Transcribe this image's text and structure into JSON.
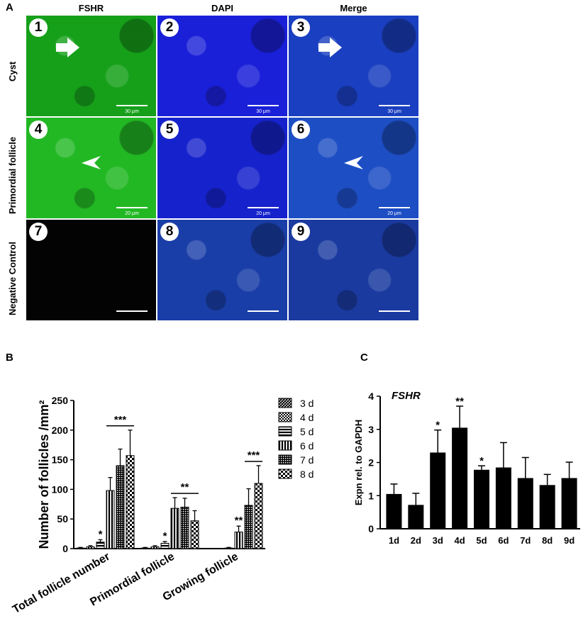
{
  "panel_a": {
    "letter": "A",
    "columns": [
      "FSHR",
      "DAPI",
      "Merge"
    ],
    "rows": [
      "Cyst",
      "Primordial follicle",
      "Negative Control"
    ],
    "tiles": [
      {
        "num": "1",
        "scale": "30 μm",
        "color": "#16a01a",
        "arrow": "arrow"
      },
      {
        "num": "2",
        "scale": "30 μm",
        "color": "#1a20d8",
        "arrow": ""
      },
      {
        "num": "3",
        "scale": "30 μm",
        "color": "#1a3fc0",
        "arrow": "arrow"
      },
      {
        "num": "4",
        "scale": "20 μm",
        "color": "#22b824",
        "arrow": "arrowhead"
      },
      {
        "num": "5",
        "scale": "20 μm",
        "color": "#1622cc",
        "arrow": ""
      },
      {
        "num": "6",
        "scale": "20 μm",
        "color": "#1d4ec4",
        "arrow": "arrowhead"
      },
      {
        "num": "7",
        "scale": "",
        "color": "#030303",
        "arrow": ""
      },
      {
        "num": "8",
        "scale": "",
        "color": "#1a3ea8",
        "arrow": ""
      },
      {
        "num": "9",
        "scale": "",
        "color": "#1a3aa0",
        "arrow": ""
      }
    ]
  },
  "panel_b": {
    "letter": "B"
  },
  "panel_c": {
    "letter": "C"
  },
  "chart_data": [
    {
      "type": "bar",
      "ylabel": "Number of follicles /mm²",
      "ylim": [
        0,
        250
      ],
      "yticks": [
        "0",
        "50",
        "100",
        "150",
        "200",
        "250"
      ],
      "categories": [
        "Total follicle number",
        "Primordial follicle",
        "Growing follicle"
      ],
      "series": [
        {
          "name": "3 d",
          "values": [
            1,
            1,
            0
          ],
          "errors": [
            1,
            1,
            0
          ]
        },
        {
          "name": "4 d",
          "values": [
            3,
            3,
            0
          ],
          "errors": [
            2,
            2,
            0
          ]
        },
        {
          "name": "5 d",
          "values": [
            11,
            9,
            1
          ],
          "errors": [
            4,
            3,
            1
          ]
        },
        {
          "name": "6 d",
          "values": [
            98,
            68,
            28
          ],
          "errors": [
            22,
            18,
            10
          ]
        },
        {
          "name": "7 d",
          "values": [
            140,
            70,
            73
          ],
          "errors": [
            28,
            15,
            28
          ]
        },
        {
          "name": "8 d",
          "values": [
            157,
            47,
            110
          ],
          "errors": [
            43,
            17,
            30
          ]
        }
      ],
      "annotations": [
        {
          "text": "*",
          "category": 0,
          "series": 2
        },
        {
          "text": "***",
          "category": 0,
          "from_series": 3,
          "to_series": 5
        },
        {
          "text": "*",
          "category": 1,
          "series": 2
        },
        {
          "text": "**",
          "category": 1,
          "from_series": 3,
          "to_series": 5
        },
        {
          "text": "**",
          "category": 2,
          "series": 3
        },
        {
          "text": "***",
          "category": 2,
          "from_series": 4,
          "to_series": 5
        }
      ],
      "legend": "right"
    },
    {
      "type": "bar",
      "title": "FSHR",
      "ylabel": "Expn rel. to GAPDH",
      "ylim": [
        0,
        4
      ],
      "yticks": [
        "0",
        "1",
        "2",
        "3",
        "4"
      ],
      "categories": [
        "1d",
        "2d",
        "3d",
        "4d",
        "5d",
        "6d",
        "7d",
        "8d",
        "9d"
      ],
      "values": [
        1.05,
        0.72,
        2.3,
        3.05,
        1.78,
        1.85,
        1.53,
        1.32,
        1.53
      ],
      "errors": [
        0.3,
        0.35,
        0.68,
        0.65,
        0.12,
        0.75,
        0.62,
        0.32,
        0.48
      ],
      "annotations": [
        {
          "text": "*",
          "index": 2
        },
        {
          "text": "**",
          "index": 3
        },
        {
          "text": "*",
          "index": 4
        }
      ]
    }
  ]
}
